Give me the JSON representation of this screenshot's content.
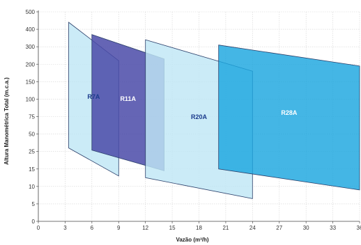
{
  "chart_data": {
    "type": "area",
    "xlabel": "Vazão (m³/h)",
    "ylabel": "Altura Manométrica Total (m.c.a.)",
    "x_ticks": [
      "0",
      "3",
      "6",
      "9",
      "12",
      "15",
      "18",
      "21",
      "24",
      "27",
      "30",
      "33",
      "36"
    ],
    "y_ticks": [
      "0",
      "5",
      "10",
      "15",
      "25",
      "50",
      "75",
      "100",
      "150",
      "200",
      "300",
      "400",
      "500"
    ],
    "xlim": [
      0,
      36
    ],
    "ylim": [
      0,
      500
    ],
    "y_scale": "tick-indexed (non-linear)",
    "grid": true,
    "regions": [
      {
        "name": "R7A",
        "color": "#bfe6f5",
        "label_color": "#1b3b8c",
        "polygon": [
          [
            3.4,
            440
          ],
          [
            9.0,
            220
          ],
          [
            9.0,
            13
          ],
          [
            3.4,
            30
          ]
        ]
      },
      {
        "name": "R11A",
        "color": "#4a4aa8",
        "label_color": "#ffffff",
        "polygon": [
          [
            6.0,
            370
          ],
          [
            14.1,
            230
          ],
          [
            14.1,
            14.5
          ],
          [
            6.0,
            27
          ]
        ]
      },
      {
        "name": "R20A",
        "color": "#bfe6f5",
        "label_color": "#1b3b8c",
        "polygon": [
          [
            12.0,
            340
          ],
          [
            24.0,
            180
          ],
          [
            24.0,
            6.5
          ],
          [
            12.0,
            12.5
          ]
        ]
      },
      {
        "name": "R28A",
        "color": "#1ba6df",
        "label_color": "#ffffff",
        "polygon": [
          [
            20.2,
            310
          ],
          [
            36.0,
            195
          ],
          [
            36.0,
            9
          ],
          [
            20.2,
            15
          ]
        ]
      }
    ]
  }
}
